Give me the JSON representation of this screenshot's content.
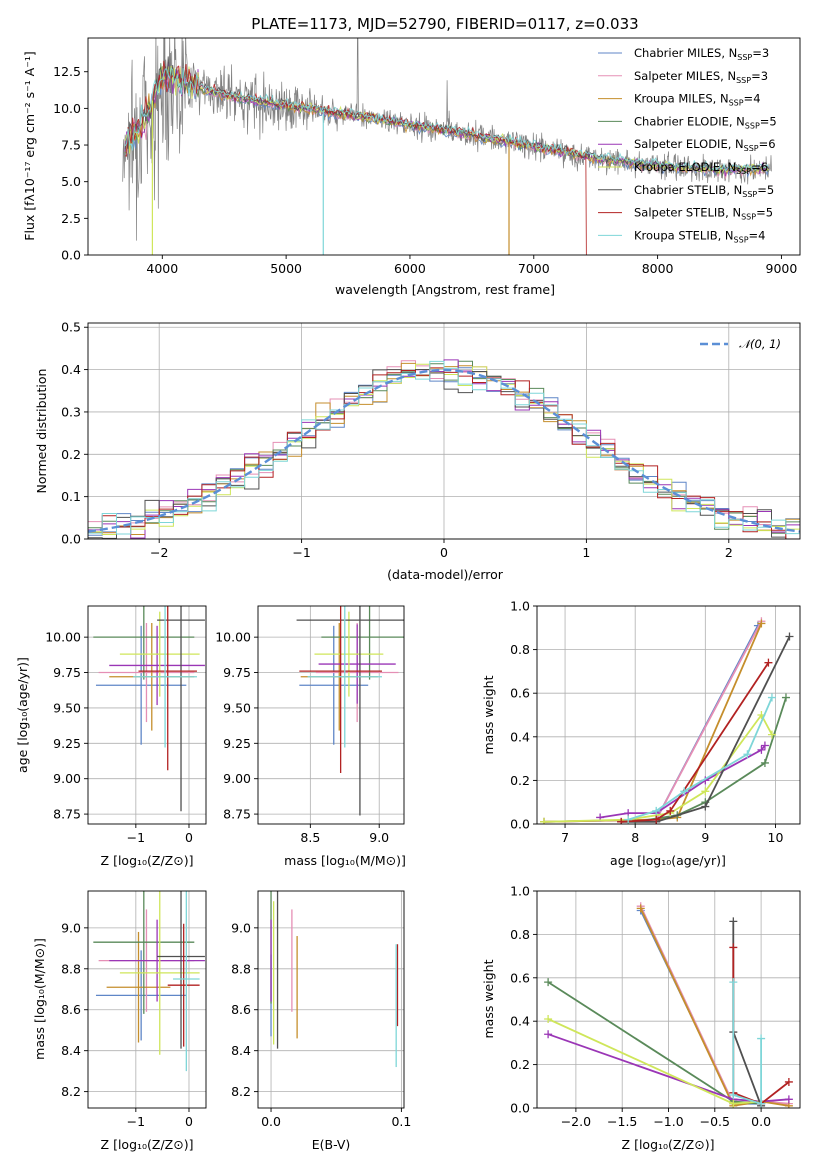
{
  "figure": {
    "title": "PLATE=1173, MJD=52790, FIBERID=0117, z=0.033"
  },
  "models": [
    {
      "name": "Chabrier MILES",
      "nssp": "3",
      "color": "#5f86c7"
    },
    {
      "name": "Salpeter MILES",
      "nssp": "3",
      "color": "#e58fb5"
    },
    {
      "name": "Kroupa MILES",
      "nssp": "4",
      "color": "#c58e2c"
    },
    {
      "name": "Chabrier ELODIE",
      "nssp": "5",
      "color": "#5a8a5a"
    },
    {
      "name": "Salpeter ELODIE",
      "nssp": "6",
      "color": "#9a36b6"
    },
    {
      "name": "Kroupa ELODIE",
      "nssp": "6",
      "color": "#cfe65a"
    },
    {
      "name": "Chabrier STELIB",
      "nssp": "5",
      "color": "#505050"
    },
    {
      "name": "Salpeter STELIB",
      "nssp": "5",
      "color": "#b22222"
    },
    {
      "name": "Kroupa STELIB",
      "nssp": "4",
      "color": "#7ed6d8"
    }
  ],
  "chart_data": [
    {
      "id": "spectrum",
      "type": "line",
      "title": "PLATE=1173, MJD=52790, FIBERID=0117, z=0.033",
      "xlabel": "wavelength [Angstrom, rest frame]",
      "ylabel": "Flux [fλ10⁻¹⁷ erg cm⁻² s⁻¹ A⁻¹]",
      "xlim": [
        3400,
        9150
      ],
      "ylim": [
        0,
        14.8
      ],
      "xticks": [
        4000,
        5000,
        6000,
        7000,
        8000,
        9000
      ],
      "yticks": [
        0.0,
        2.5,
        5.0,
        7.5,
        10.0,
        12.5
      ],
      "legend": "top-right",
      "data_color": "#808080",
      "continuum": [
        [
          3700,
          7.6
        ],
        [
          3850,
          9.0
        ],
        [
          4000,
          12.3
        ],
        [
          4200,
          11.8
        ],
        [
          4500,
          10.9
        ],
        [
          5000,
          10.2
        ],
        [
          5500,
          9.6
        ],
        [
          6000,
          8.9
        ],
        [
          6500,
          8.2
        ],
        [
          7000,
          7.4
        ],
        [
          7500,
          6.6
        ],
        [
          8000,
          6.1
        ],
        [
          8500,
          5.8
        ],
        [
          8900,
          5.9
        ]
      ]
    },
    {
      "id": "residuals",
      "type": "bar",
      "xlabel": "(data-model)/error",
      "ylabel": "Normed distribution",
      "xlim": [
        -2.5,
        2.5
      ],
      "ylim": [
        0,
        0.51
      ],
      "xticks": [
        -2,
        -1,
        0,
        1,
        2
      ],
      "yticks": [
        0.0,
        0.1,
        0.2,
        0.3,
        0.4,
        0.5
      ],
      "bin_width": 0.1,
      "reference_label": "𝒩(0, 1)",
      "reference_color": "#5b8fd6",
      "legend": "top-right"
    },
    {
      "id": "age-vs-z",
      "type": "scatter",
      "xlabel": "Z [log₁₀(Z/Z⊙)]",
      "ylabel": "age  [log₁₀(age/yr)]",
      "xlim": [
        -1.9,
        0.32
      ],
      "ylim": [
        8.68,
        10.22
      ],
      "xticks": [
        -1,
        0
      ],
      "yticks": [
        8.75,
        9.0,
        9.25,
        9.5,
        9.75,
        10.0
      ],
      "points": [
        {
          "model": 0,
          "x": -0.9,
          "xerr": 0.85,
          "y": 9.66,
          "yerr": 0.42
        },
        {
          "model": 1,
          "x": -0.8,
          "xerr": 0.9,
          "y": 9.75,
          "yerr": 0.35
        },
        {
          "model": 2,
          "x": -0.7,
          "xerr": 0.8,
          "y": 9.72,
          "yerr": 0.38
        },
        {
          "model": 3,
          "x": -0.85,
          "xerr": 0.95,
          "y": 10.0,
          "yerr": 0.3
        },
        {
          "model": 4,
          "x": -0.6,
          "xerr": 0.9,
          "y": 9.8,
          "yerr": 0.28
        },
        {
          "model": 5,
          "x": -0.55,
          "xerr": 0.75,
          "y": 9.88,
          "yerr": 0.3
        },
        {
          "model": 6,
          "x": -0.15,
          "xerr": 0.45,
          "y": 10.12,
          "yerr": 1.35
        },
        {
          "model": 7,
          "x": -0.4,
          "xerr": 0.55,
          "y": 9.76,
          "yerr": 0.7
        },
        {
          "model": 8,
          "x": -0.45,
          "xerr": 0.6,
          "y": 9.72,
          "yerr": 0.5
        }
      ]
    },
    {
      "id": "age-vs-mass",
      "type": "scatter",
      "xlabel": "mass [log₁₀(M/M⊙)]",
      "ylabel": "",
      "xlim": [
        8.12,
        9.18
      ],
      "ylim": [
        8.68,
        10.22
      ],
      "xticks": [
        8.5,
        9.0
      ],
      "yticks": [
        8.75,
        9.0,
        9.25,
        9.5,
        9.75,
        10.0
      ],
      "points": [
        {
          "model": 0,
          "x": 8.67,
          "xerr": 0.25,
          "y": 9.66,
          "yerr": 0.42
        },
        {
          "model": 1,
          "x": 8.84,
          "xerr": 0.3,
          "y": 9.75,
          "yerr": 0.35
        },
        {
          "model": 2,
          "x": 8.71,
          "xerr": 0.28,
          "y": 9.72,
          "yerr": 0.38
        },
        {
          "model": 3,
          "x": 8.93,
          "xerr": 0.35,
          "y": 10.0,
          "yerr": 0.3
        },
        {
          "model": 4,
          "x": 8.84,
          "xerr": 0.28,
          "y": 9.81,
          "yerr": 0.28
        },
        {
          "model": 5,
          "x": 8.78,
          "xerr": 0.25,
          "y": 9.88,
          "yerr": 0.3
        },
        {
          "model": 6,
          "x": 8.86,
          "xerr": 0.46,
          "y": 10.12,
          "yerr": 1.38
        },
        {
          "model": 7,
          "x": 8.72,
          "xerr": 0.3,
          "y": 9.76,
          "yerr": 0.72
        },
        {
          "model": 8,
          "x": 8.75,
          "xerr": 0.27,
          "y": 9.72,
          "yerr": 0.5
        }
      ]
    },
    {
      "id": "massweight-vs-age",
      "type": "line",
      "xlabel": "age  [log₁₀(age/yr)]",
      "ylabel": "mass weight",
      "xlim": [
        6.6,
        10.35
      ],
      "ylim": [
        0,
        1.0
      ],
      "xticks": [
        7,
        8,
        9,
        10
      ],
      "yticks": [
        0.0,
        0.2,
        0.4,
        0.6,
        0.8,
        1.0
      ],
      "series": [
        {
          "model": 0,
          "x": [
            6.7,
            8.3,
            9.75
          ],
          "y": [
            0.01,
            0.02,
            0.91
          ]
        },
        {
          "model": 1,
          "x": [
            6.7,
            8.3,
            9.8
          ],
          "y": [
            0.01,
            0.02,
            0.93
          ]
        },
        {
          "model": 2,
          "x": [
            6.7,
            8.3,
            8.6,
            9.8
          ],
          "y": [
            0.01,
            0.02,
            0.03,
            0.92
          ]
        },
        {
          "model": 3,
          "x": [
            8.0,
            8.6,
            9.0,
            9.85,
            10.15
          ],
          "y": [
            0.01,
            0.04,
            0.1,
            0.28,
            0.58
          ]
        },
        {
          "model": 4,
          "x": [
            7.5,
            7.9,
            8.3,
            9.0,
            9.8,
            9.85
          ],
          "y": [
            0.03,
            0.05,
            0.05,
            0.2,
            0.34,
            0.36
          ]
        },
        {
          "model": 5,
          "x": [
            6.7,
            7.9,
            8.5,
            9.0,
            9.8,
            9.95
          ],
          "y": [
            0.01,
            0.02,
            0.05,
            0.15,
            0.5,
            0.41
          ]
        },
        {
          "model": 6,
          "x": [
            7.8,
            8.3,
            9.0,
            10.2
          ],
          "y": [
            0.01,
            0.01,
            0.08,
            0.86
          ]
        },
        {
          "model": 7,
          "x": [
            7.8,
            8.3,
            8.5,
            9.9
          ],
          "y": [
            0.01,
            0.02,
            0.06,
            0.74
          ]
        },
        {
          "model": 8,
          "x": [
            7.9,
            8.3,
            8.7,
            9.6,
            9.95
          ],
          "y": [
            0.02,
            0.06,
            0.15,
            0.32,
            0.58
          ]
        }
      ]
    },
    {
      "id": "mass-vs-z",
      "type": "scatter",
      "xlabel": "Z [log₁₀(Z/Z⊙)]",
      "ylabel": "mass [log₁₀(M/M⊙)]",
      "xlim": [
        -1.9,
        0.32
      ],
      "ylim": [
        8.12,
        9.18
      ],
      "xticks": [
        -1,
        0
      ],
      "yticks": [
        8.2,
        8.4,
        8.6,
        8.8,
        9.0
      ],
      "points": [
        {
          "model": 0,
          "x": -0.9,
          "xerr": 0.85,
          "y": 8.67,
          "yerr": 0.22
        },
        {
          "model": 1,
          "x": -0.8,
          "xerr": 0.9,
          "y": 8.84,
          "yerr": 0.25
        },
        {
          "model": 2,
          "x": -0.95,
          "xerr": 0.6,
          "y": 8.71,
          "yerr": 0.27
        },
        {
          "model": 3,
          "x": -0.85,
          "xerr": 0.95,
          "y": 8.93,
          "yerr": 0.35
        },
        {
          "model": 4,
          "x": -0.6,
          "xerr": 0.9,
          "y": 8.84,
          "yerr": 0.2
        },
        {
          "model": 5,
          "x": -0.55,
          "xerr": 0.75,
          "y": 8.78,
          "yerr": 0.4
        },
        {
          "model": 6,
          "x": -0.15,
          "xerr": 0.45,
          "y": 8.86,
          "yerr": 0.45
        },
        {
          "model": 7,
          "x": -0.1,
          "xerr": 0.3,
          "y": 8.72,
          "yerr": 0.3
        },
        {
          "model": 8,
          "x": -0.05,
          "xerr": 0.25,
          "y": 8.75,
          "yerr": 0.45
        }
      ]
    },
    {
      "id": "mass-vs-ebv",
      "type": "scatter",
      "xlabel": "E(B-V)",
      "ylabel": "",
      "xlim": [
        -0.01,
        0.102
      ],
      "ylim": [
        8.12,
        9.18
      ],
      "xticks": [
        0.0,
        0.1
      ],
      "yticks": [
        8.2,
        8.4,
        8.6,
        8.8,
        9.0
      ],
      "points": [
        {
          "model": 0,
          "x": 0.0,
          "y": 8.67,
          "yerr": 0.2
        },
        {
          "model": 1,
          "x": 0.016,
          "y": 8.84,
          "yerr": 0.25
        },
        {
          "model": 2,
          "x": 0.02,
          "y": 8.71,
          "yerr": 0.25
        },
        {
          "model": 3,
          "x": 0.0,
          "y": 8.93,
          "yerr": 0.3
        },
        {
          "model": 4,
          "x": 0.0,
          "y": 8.84,
          "yerr": 0.2
        },
        {
          "model": 5,
          "x": 0.002,
          "y": 8.78,
          "yerr": 0.35
        },
        {
          "model": 6,
          "x": 0.005,
          "y": 8.86,
          "yerr": 0.45
        },
        {
          "model": 7,
          "x": 0.097,
          "y": 8.72,
          "yerr": 0.2
        },
        {
          "model": 8,
          "x": 0.096,
          "y": 8.62,
          "yerr": 0.3
        }
      ]
    },
    {
      "id": "massweight-vs-z",
      "type": "line",
      "xlabel": "Z [log₁₀(Z/Z⊙)]",
      "ylabel": "mass weight",
      "xlim": [
        -2.42,
        0.42
      ],
      "ylim": [
        0,
        1.0
      ],
      "xticks": [
        -2.0,
        -1.5,
        -1.0,
        -0.5,
        0.0
      ],
      "yticks": [
        0.0,
        0.2,
        0.4,
        0.6,
        0.8,
        1.0
      ],
      "series": [
        {
          "model": 0,
          "x": [
            -1.3,
            -0.3,
            0.0
          ],
          "y": [
            0.91,
            0.02,
            0.02
          ]
        },
        {
          "model": 1,
          "x": [
            -1.3,
            -0.3,
            0.0,
            0.3
          ],
          "y": [
            0.93,
            0.02,
            0.03,
            0.02
          ]
        },
        {
          "model": 2,
          "x": [
            -1.3,
            -0.3,
            0.0,
            0.3
          ],
          "y": [
            0.92,
            0.01,
            0.03,
            0.01
          ]
        },
        {
          "model": 3,
          "x": [
            -2.3,
            -0.3,
            0.0
          ],
          "y": [
            0.58,
            0.03,
            0.02
          ]
        },
        {
          "model": 4,
          "x": [
            -2.3,
            -0.3,
            0.0,
            0.3
          ],
          "y": [
            0.34,
            0.04,
            0.03,
            0.04
          ]
        },
        {
          "model": 5,
          "x": [
            -2.3,
            -0.3,
            0.0
          ],
          "y": [
            0.41,
            0.02,
            0.03
          ]
        },
        {
          "model": 6,
          "x": [
            -0.3,
            -0.3,
            0.0
          ],
          "y": [
            0.86,
            0.35,
            0.01
          ]
        },
        {
          "model": 7,
          "x": [
            -0.3,
            -0.3,
            0.0,
            0.3
          ],
          "y": [
            0.74,
            0.07,
            0.02,
            0.12
          ]
        },
        {
          "model": 8,
          "x": [
            -0.3,
            -0.3,
            0.0,
            0.0
          ],
          "y": [
            0.58,
            0.06,
            0.02,
            0.32
          ]
        }
      ]
    }
  ]
}
